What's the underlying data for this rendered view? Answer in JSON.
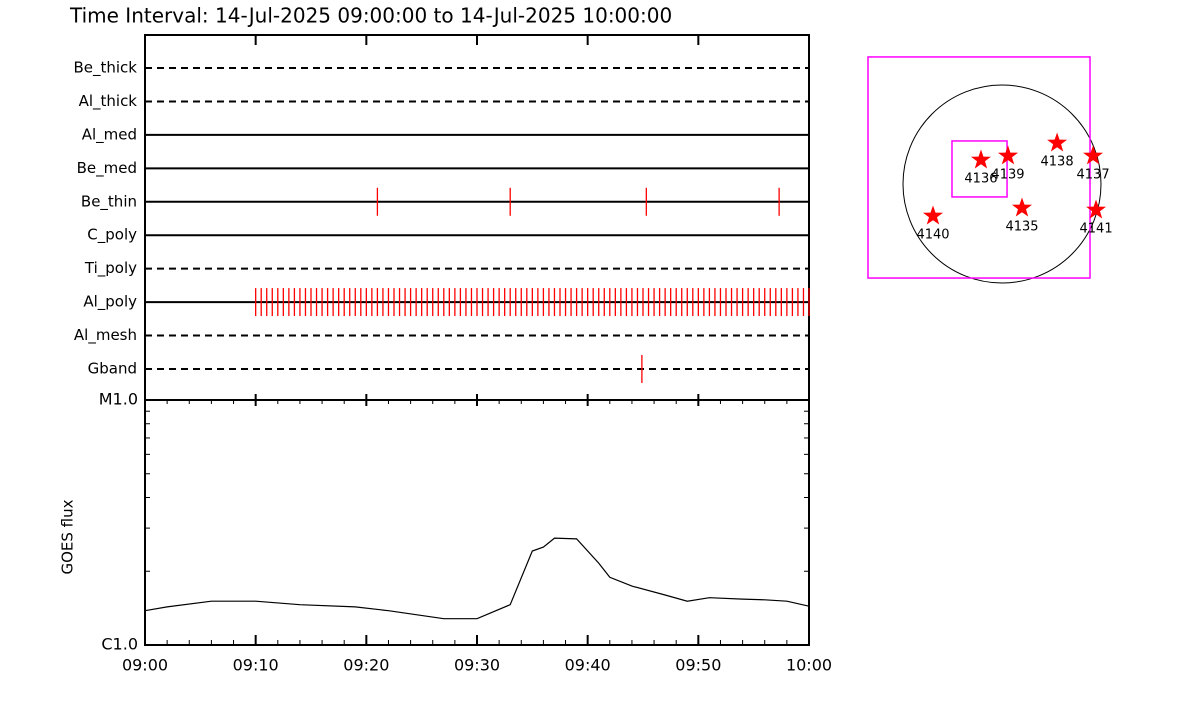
{
  "chart_data": [
    {
      "type": "timeline",
      "title": "Time Interval: 14-Jul-2025 09:00:00 to 14-Jul-2025 10:00:00",
      "xlim": [
        0,
        60
      ],
      "color": "#ff0000",
      "series": [
        {
          "name": "Be_thick",
          "style": "dashed",
          "values": []
        },
        {
          "name": "Al_thick",
          "style": "dashed",
          "values": []
        },
        {
          "name": "Al_med",
          "style": "solid",
          "values": []
        },
        {
          "name": "Be_med",
          "style": "solid",
          "values": []
        },
        {
          "name": "Be_thin",
          "style": "solid",
          "values": [
            21.0,
            33.0,
            45.3,
            57.3
          ]
        },
        {
          "name": "C_poly",
          "style": "solid",
          "values": []
        },
        {
          "name": "Ti_poly",
          "style": "dashed",
          "values": []
        },
        {
          "name": "Al_poly",
          "style": "solid",
          "values": [
            10,
            10.5,
            11,
            11.5,
            12,
            12.5,
            13,
            13.5,
            14,
            14.5,
            15,
            15.5,
            16,
            16.5,
            17,
            17.5,
            18,
            18.5,
            19,
            19.5,
            20,
            20.5,
            21,
            21.5,
            22,
            22.5,
            23,
            23.5,
            24,
            24.5,
            25,
            25.5,
            26,
            26.5,
            27,
            27.5,
            28,
            28.5,
            29,
            29.5,
            30,
            30.5,
            31,
            31.5,
            32,
            32.5,
            33,
            33.5,
            34,
            34.5,
            35,
            35.5,
            36,
            36.5,
            37,
            37.5,
            38,
            38.5,
            39,
            39.5,
            40,
            40.5,
            41,
            41.5,
            42,
            42.5,
            43,
            43.5,
            44,
            44.5,
            45,
            45.5,
            46,
            46.5,
            47,
            47.5,
            48,
            48.5,
            49,
            49.5,
            50,
            50.5,
            51,
            51.5,
            52,
            52.5,
            53,
            53.5,
            54,
            54.5,
            55,
            55.5,
            56,
            56.5,
            57,
            57.5,
            58,
            58.5,
            59,
            59.5,
            60
          ]
        },
        {
          "name": "Al_mesh",
          "style": "dashed",
          "values": []
        },
        {
          "name": "Gband",
          "style": "dashed",
          "values": [
            44.9
          ]
        }
      ]
    },
    {
      "type": "line",
      "ylabel": "GOES flux",
      "log": true,
      "color": "#000000",
      "x": [
        0,
        2,
        6,
        10,
        14,
        19,
        22,
        27,
        30,
        33,
        35,
        36,
        37,
        39,
        41,
        42,
        44,
        47,
        49,
        51,
        54,
        56,
        58,
        60
      ],
      "values": [
        1.38e-06,
        1.43e-06,
        1.51e-06,
        1.51e-06,
        1.46e-06,
        1.43e-06,
        1.38e-06,
        1.28e-06,
        1.28e-06,
        1.46e-06,
        2.42e-06,
        2.51e-06,
        2.73e-06,
        2.71e-06,
        2.16e-06,
        1.89e-06,
        1.74e-06,
        1.6e-06,
        1.51e-06,
        1.56e-06,
        1.54e-06,
        1.53e-06,
        1.51e-06,
        1.44e-06
      ],
      "xlim": [
        0,
        60
      ],
      "xticks": [
        {
          "value": 0,
          "label": "09:00"
        },
        {
          "value": 10,
          "label": "09:10"
        },
        {
          "value": 20,
          "label": "09:20"
        },
        {
          "value": 30,
          "label": "09:30"
        },
        {
          "value": 40,
          "label": "09:40"
        },
        {
          "value": 50,
          "label": "09:50"
        },
        {
          "value": 60,
          "label": "10:00"
        }
      ],
      "xminor": [
        2,
        4,
        6,
        8,
        12,
        14,
        16,
        18,
        22,
        24,
        26,
        28,
        32,
        34,
        36,
        38,
        42,
        44,
        46,
        48,
        52,
        54,
        56,
        58
      ],
      "ylim": [
        1e-06,
        1e-05
      ],
      "yticks": [
        {
          "value": 1e-06,
          "label": "C1.0"
        },
        {
          "value": 1e-05,
          "label": "M1.0"
        }
      ],
      "yminor": [
        2e-06,
        3e-06,
        4e-06,
        5e-06,
        6e-06,
        7e-06,
        8e-06,
        9e-06
      ]
    },
    {
      "type": "map",
      "disk_radius": 960,
      "color": "#ff0000",
      "box_color": "#ff00ff",
      "boxes": [
        {
          "xcen": -223,
          "ycen": 160,
          "width": 2153,
          "height": 2144
        },
        {
          "xcen": -218,
          "ycen": 146,
          "width": 534,
          "height": 543
        }
      ],
      "regions": [
        {
          "label": "4136",
          "x": -204,
          "y": 233
        },
        {
          "label": "4139",
          "x": 58,
          "y": 272
        },
        {
          "label": "4138",
          "x": 534,
          "y": 398
        },
        {
          "label": "4137",
          "x": 883,
          "y": 272
        },
        {
          "label": "4135",
          "x": 194,
          "y": -233
        },
        {
          "label": "4141",
          "x": 912,
          "y": -252
        },
        {
          "label": "4140",
          "x": -669,
          "y": -310
        }
      ]
    }
  ]
}
